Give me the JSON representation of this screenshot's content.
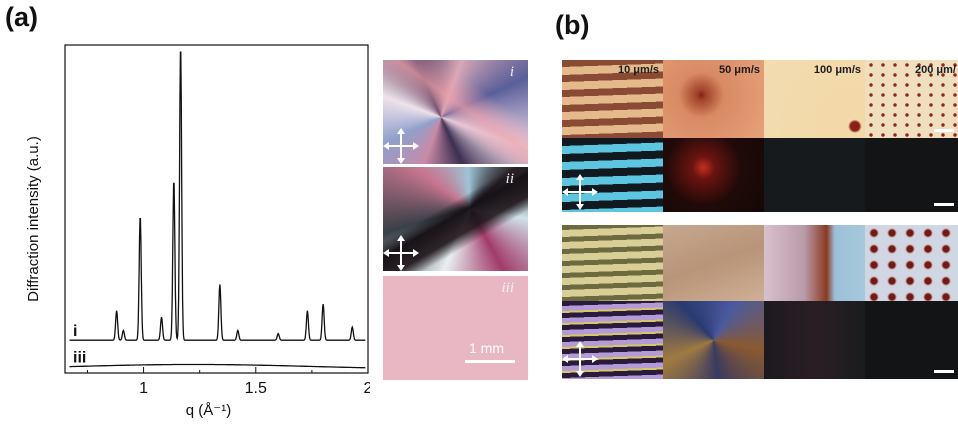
{
  "panel_a": {
    "label": "(a)",
    "chart_data": {
      "type": "line",
      "xlabel": "q (Å⁻¹)",
      "ylabel": "Diffraction intensity (a.u.)",
      "xlim": [
        0.65,
        2.0
      ],
      "x_ticks": [
        "1",
        "1.5",
        "2"
      ],
      "series": [
        {
          "name": "i",
          "baseline": 0.1,
          "peaks": [
            {
              "x": 0.88,
              "y": 0.09
            },
            {
              "x": 0.91,
              "y": 0.03
            },
            {
              "x": 0.985,
              "y": 0.38
            },
            {
              "x": 1.08,
              "y": 0.07
            },
            {
              "x": 1.135,
              "y": 0.49
            },
            {
              "x": 1.165,
              "y": 0.9
            },
            {
              "x": 1.34,
              "y": 0.17
            },
            {
              "x": 1.42,
              "y": 0.03
            },
            {
              "x": 1.6,
              "y": 0.02
            },
            {
              "x": 1.73,
              "y": 0.09
            },
            {
              "x": 1.8,
              "y": 0.11
            },
            {
              "x": 1.93,
              "y": 0.04
            }
          ]
        },
        {
          "name": "iii",
          "baseline": 0.02,
          "peaks": []
        }
      ]
    },
    "micrographs": [
      {
        "label": "i"
      },
      {
        "label": "ii"
      },
      {
        "label": "iii",
        "scale_bar": "1 mm"
      }
    ]
  },
  "panel_b": {
    "label": "(b)",
    "speeds": [
      "10 μm/s",
      "50 μm/s",
      "100 μm/s",
      "200 μm/"
    ]
  }
}
